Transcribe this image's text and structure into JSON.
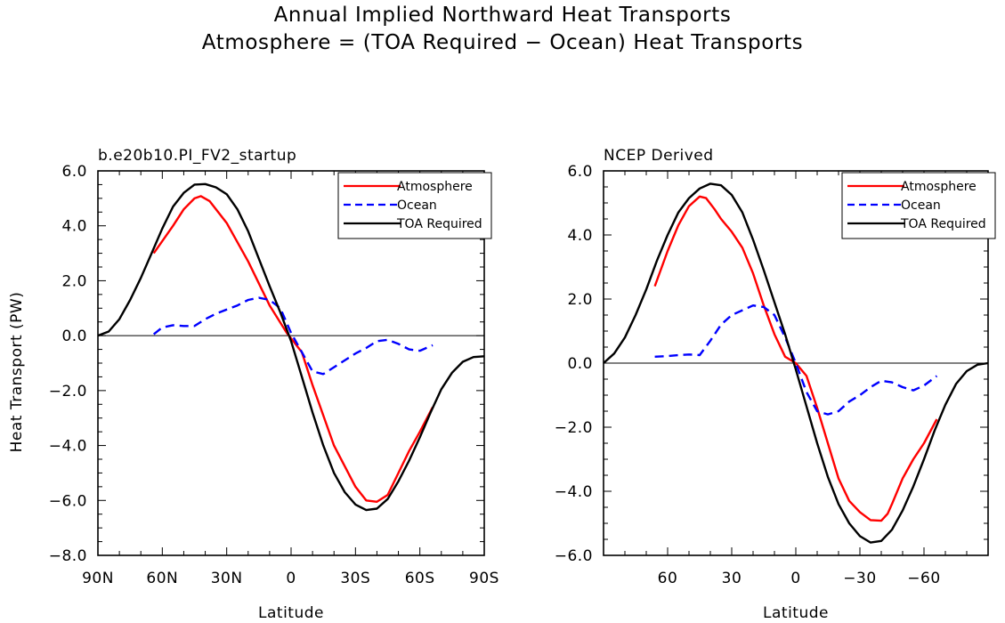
{
  "figure": {
    "title": "Annual Implied Northward Heat Transports",
    "subtitle": "Atmosphere = (TOA Required − Ocean) Heat Transports"
  },
  "chart_data": [
    {
      "type": "line",
      "panel_title": "b.e20b10.PI_FV2_startup",
      "xlabel": "Latitude",
      "ylabel": "Heat Transport  (PW)",
      "xlim": [
        90,
        -90
      ],
      "ylim": [
        -8,
        6
      ],
      "x_ticks": [
        90,
        60,
        30,
        0,
        -30,
        -60,
        -90
      ],
      "x_tick_labels": [
        "90N",
        "60N",
        "30N",
        "0",
        "30S",
        "60S",
        "90S"
      ],
      "y_ticks": [
        6,
        4,
        2,
        0,
        -2,
        -4,
        -6,
        -8
      ],
      "y_tick_labels": [
        "6.0",
        "4.0",
        "2.0",
        "0.0",
        "−2.0",
        "−4.0",
        "−6.0",
        "−8.0"
      ],
      "legend": [
        "Atmosphere",
        "Ocean",
        "TOA Required"
      ],
      "legend_position": "top-right",
      "zero_line": true,
      "series": [
        {
          "name": "Atmosphere",
          "color": "#ff0000",
          "dash": "solid",
          "x": [
            64,
            55,
            50,
            45,
            42,
            38,
            30,
            20,
            10,
            2,
            0,
            -5,
            -10,
            -20,
            -30,
            -35,
            -40,
            -45,
            -50,
            -55,
            -60,
            -66
          ],
          "y": [
            3.0,
            4.0,
            4.6,
            5.0,
            5.08,
            4.9,
            4.1,
            2.7,
            1.1,
            0.1,
            -0.1,
            -0.6,
            -1.8,
            -4.0,
            -5.5,
            -6.0,
            -6.05,
            -5.8,
            -5.0,
            -4.2,
            -3.5,
            -2.6
          ]
        },
        {
          "name": "Ocean",
          "color": "#0000ff",
          "dash": "dashed",
          "x": [
            64,
            60,
            55,
            50,
            45,
            40,
            35,
            30,
            25,
            20,
            15,
            10,
            5,
            0,
            -5,
            -10,
            -15,
            -20,
            -25,
            -30,
            -35,
            -40,
            -45,
            -50,
            -55,
            -60,
            -66
          ],
          "y": [
            0.05,
            0.3,
            0.38,
            0.35,
            0.35,
            0.6,
            0.8,
            0.95,
            1.1,
            1.3,
            1.38,
            1.3,
            1.0,
            0.1,
            -0.6,
            -1.3,
            -1.4,
            -1.15,
            -0.9,
            -0.65,
            -0.45,
            -0.2,
            -0.15,
            -0.3,
            -0.5,
            -0.55,
            -0.35
          ]
        },
        {
          "name": "TOA Required",
          "color": "#000000",
          "dash": "solid",
          "x": [
            90,
            85,
            80,
            75,
            70,
            65,
            60,
            55,
            50,
            45,
            40,
            35,
            30,
            25,
            20,
            15,
            10,
            5,
            0,
            -5,
            -10,
            -15,
            -20,
            -25,
            -30,
            -35,
            -40,
            -45,
            -50,
            -55,
            -60,
            -65,
            -70,
            -75,
            -80,
            -85,
            -90
          ],
          "y": [
            0.0,
            0.15,
            0.6,
            1.3,
            2.1,
            3.0,
            3.9,
            4.7,
            5.2,
            5.5,
            5.52,
            5.4,
            5.15,
            4.6,
            3.8,
            2.8,
            1.8,
            0.85,
            -0.2,
            -1.5,
            -2.8,
            -4.0,
            -5.0,
            -5.7,
            -6.15,
            -6.35,
            -6.3,
            -5.95,
            -5.3,
            -4.55,
            -3.7,
            -2.8,
            -1.95,
            -1.35,
            -0.95,
            -0.78,
            -0.75
          ]
        }
      ]
    },
    {
      "type": "line",
      "panel_title": "NCEP Derived",
      "xlabel": "Latitude",
      "ylabel": "",
      "xlim": [
        90,
        -90
      ],
      "ylim": [
        -6,
        6
      ],
      "x_ticks": [
        60,
        30,
        0,
        -30,
        -60
      ],
      "x_tick_labels": [
        "60",
        "30",
        "0",
        "−30",
        "−60"
      ],
      "y_ticks": [
        6,
        4,
        2,
        0,
        -2,
        -4,
        -6
      ],
      "y_tick_labels": [
        "6.0",
        "4.0",
        "2.0",
        "0.0",
        "−2.0",
        "−4.0",
        "−6.0"
      ],
      "legend": [
        "Atmosphere",
        "Ocean",
        "TOA Required"
      ],
      "legend_position": "top-right",
      "zero_line": true,
      "series": [
        {
          "name": "Atmosphere",
          "color": "#ff0000",
          "dash": "solid",
          "x": [
            66,
            60,
            55,
            50,
            45,
            42,
            38,
            35,
            30,
            25,
            20,
            15,
            10,
            5,
            0,
            -5,
            -10,
            -15,
            -20,
            -25,
            -30,
            -35,
            -40,
            -43,
            -45,
            -50,
            -55,
            -60,
            -66
          ],
          "y": [
            2.4,
            3.5,
            4.3,
            4.9,
            5.2,
            5.15,
            4.8,
            4.5,
            4.1,
            3.6,
            2.8,
            1.8,
            0.9,
            0.2,
            0.0,
            -0.4,
            -1.4,
            -2.5,
            -3.6,
            -4.3,
            -4.65,
            -4.9,
            -4.92,
            -4.7,
            -4.4,
            -3.6,
            -3.0,
            -2.5,
            -1.75
          ]
        },
        {
          "name": "Ocean",
          "color": "#0000ff",
          "dash": "dashed",
          "x": [
            66,
            60,
            55,
            50,
            45,
            40,
            35,
            30,
            25,
            20,
            15,
            10,
            5,
            0,
            -5,
            -10,
            -15,
            -20,
            -25,
            -30,
            -35,
            -40,
            -45,
            -50,
            -55,
            -60,
            -66
          ],
          "y": [
            0.2,
            0.22,
            0.25,
            0.27,
            0.25,
            0.7,
            1.2,
            1.5,
            1.65,
            1.8,
            1.75,
            1.5,
            0.8,
            0.0,
            -0.9,
            -1.5,
            -1.6,
            -1.5,
            -1.2,
            -1.0,
            -0.75,
            -0.55,
            -0.6,
            -0.75,
            -0.85,
            -0.7,
            -0.4
          ]
        },
        {
          "name": "TOA Required",
          "color": "#000000",
          "dash": "solid",
          "x": [
            90,
            85,
            80,
            75,
            70,
            65,
            60,
            55,
            50,
            45,
            40,
            35,
            30,
            25,
            20,
            15,
            10,
            5,
            0,
            -5,
            -10,
            -15,
            -20,
            -25,
            -30,
            -35,
            -40,
            -45,
            -50,
            -55,
            -60,
            -65,
            -70,
            -75,
            -80,
            -85,
            -90
          ],
          "y": [
            0.0,
            0.3,
            0.8,
            1.5,
            2.3,
            3.2,
            4.0,
            4.7,
            5.15,
            5.45,
            5.6,
            5.55,
            5.25,
            4.7,
            3.85,
            2.9,
            1.9,
            0.9,
            -0.2,
            -1.35,
            -2.5,
            -3.55,
            -4.4,
            -5.0,
            -5.4,
            -5.6,
            -5.55,
            -5.2,
            -4.6,
            -3.85,
            -3.0,
            -2.1,
            -1.3,
            -0.65,
            -0.25,
            -0.05,
            0.0
          ]
        }
      ]
    }
  ]
}
